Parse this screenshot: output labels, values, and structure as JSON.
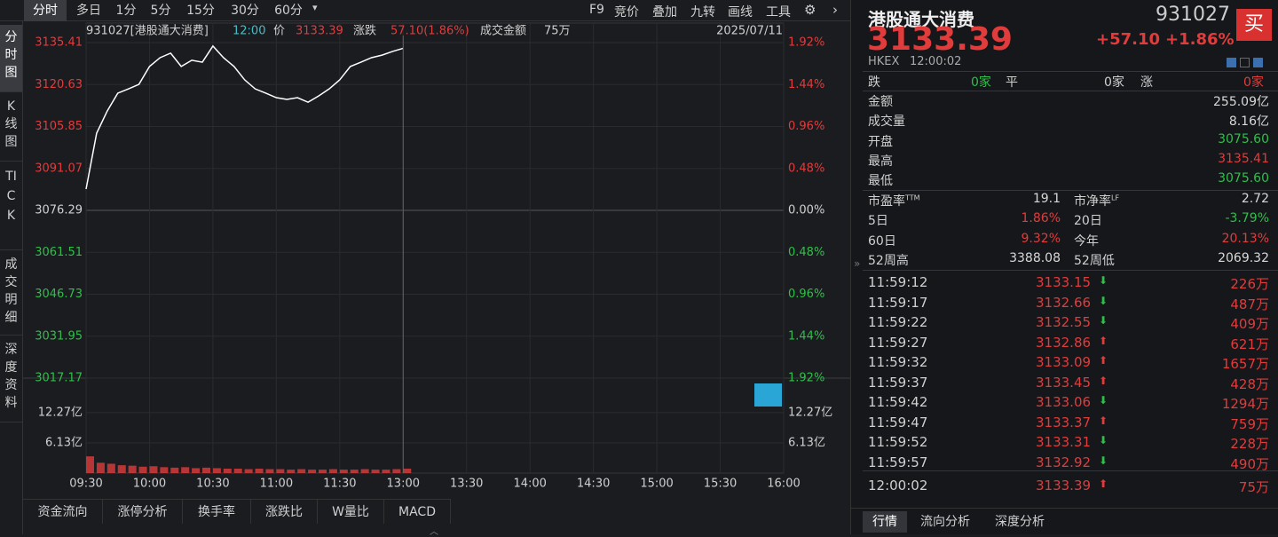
{
  "toolbar": {
    "tabs": [
      "分时",
      "多日",
      "1分",
      "5分",
      "15分",
      "30分",
      "60分"
    ],
    "tools": [
      "F9",
      "竞价",
      "叠加",
      "九转",
      "画线",
      "工具"
    ]
  },
  "sidebar": {
    "tabs": [
      "分时图",
      "K线图",
      "TICK",
      "成交明细",
      "深度资料"
    ]
  },
  "chart_info": {
    "name": "931027[港股通大消费]",
    "time": "12:00",
    "price_label": "价",
    "price": "3133.39",
    "change_label": "涨跌",
    "change": "57.10(1.86%)",
    "amount_label": "成交金额",
    "amount": "75万",
    "date": "2025/07/11"
  },
  "chart_data": {
    "type": "line",
    "x": [
      0,
      5,
      10,
      15,
      20,
      25,
      30,
      35,
      40,
      45,
      50,
      55,
      60,
      65,
      70,
      75,
      80,
      85,
      90,
      95,
      100,
      105,
      110,
      115,
      120,
      125,
      130,
      135,
      140,
      145,
      150
    ],
    "xlim": [
      0,
      330
    ],
    "xticks": [
      {
        "value": 0,
        "label": "09:30"
      },
      {
        "value": 30,
        "label": "10:00"
      },
      {
        "value": 60,
        "label": "10:30"
      },
      {
        "value": 90,
        "label": "11:00"
      },
      {
        "value": 120,
        "label": "11:30"
      },
      {
        "value": 150,
        "label": "13:00"
      },
      {
        "value": 180,
        "label": "13:30"
      },
      {
        "value": 210,
        "label": "14:00"
      },
      {
        "value": 240,
        "label": "14:30"
      },
      {
        "value": 270,
        "label": "15:00"
      },
      {
        "value": 300,
        "label": "15:30"
      },
      {
        "value": 330,
        "label": "16:00"
      }
    ],
    "series": [
      {
        "color": "#ffffff",
        "values": [
          3083.8,
          3103.5,
          3111.3,
          3117.6,
          3119.1,
          3120.7,
          3127.0,
          3130.1,
          3131.7,
          3127.0,
          3129.2,
          3128.5,
          3134.2,
          3130.1,
          3127.0,
          3122.3,
          3119.1,
          3117.6,
          3116.0,
          3115.4,
          3116.0,
          3114.4,
          3116.6,
          3119.1,
          3122.3,
          3127.0,
          3128.5,
          3130.1,
          3131.0,
          3132.3,
          3133.39
        ]
      }
    ],
    "ylim": [
      3017.17,
      3135.41
    ],
    "yticks": [
      3017.17,
      3031.95,
      3046.73,
      3061.51,
      3076.29,
      3091.07,
      3105.85,
      3120.63,
      3135.41
    ],
    "right_labels": [
      "1.92%",
      "1.44%",
      "0.96%",
      "0.48%",
      "0.00%",
      "0.48%",
      "0.96%",
      "1.44%",
      "1.92%"
    ],
    "volume": {
      "color": "#e03c3c",
      "values": [
        3.4,
        2.1,
        1.9,
        1.6,
        1.5,
        1.3,
        1.4,
        1.2,
        1.1,
        1.2,
        1.0,
        1.1,
        1.0,
        0.9,
        0.9,
        0.8,
        0.9,
        0.8,
        0.8,
        0.7,
        0.8,
        0.7,
        0.7,
        0.8,
        0.7,
        0.7,
        0.8,
        0.7,
        0.7,
        0.8,
        0.9
      ],
      "ylim": [
        0,
        19.28
      ],
      "yticks": [
        {
          "value": 6.13,
          "label": "6.13亿"
        },
        {
          "value": 12.27,
          "label": "12.27亿"
        }
      ]
    }
  },
  "bottom_tabs": [
    "资金流向",
    "涨停分析",
    "换手率",
    "涨跌比",
    "W量比",
    "MACD"
  ],
  "quote": {
    "title": "港股通大消费",
    "code": "931027",
    "buy": "买",
    "price": "3133.39",
    "change": "+57.10",
    "change_pct": "+1.86%",
    "market": "HKEX",
    "time": "12:00:02"
  },
  "breadth": {
    "down_label": "跌",
    "down": "0家",
    "flat_label": "平",
    "flat": "0家",
    "up_label": "涨",
    "up": "0家"
  },
  "stats": [
    {
      "label": "金额",
      "value": "255.09亿",
      "color": "#d8d8d8"
    },
    {
      "label": "成交量",
      "value": "8.16亿",
      "color": "#d8d8d8"
    },
    {
      "label": "开盘",
      "value": "3075.60",
      "color": "#2fbf4a"
    },
    {
      "label": "最高",
      "value": "3135.41",
      "color": "#e03c3c"
    },
    {
      "label": "最低",
      "value": "3075.60",
      "color": "#2fbf4a"
    }
  ],
  "ratios": [
    [
      {
        "label": "市盈率",
        "sup": "TTM",
        "value": "19.1",
        "color": "#d8d8d8"
      },
      {
        "label": "市净率",
        "sup": "LF",
        "value": "2.72",
        "color": "#d8d8d8"
      }
    ],
    [
      {
        "label": "5日",
        "value": "1.86%",
        "color": "#e03c3c"
      },
      {
        "label": "20日",
        "value": "-3.79%",
        "color": "#2fbf4a"
      }
    ],
    [
      {
        "label": "60日",
        "value": "9.32%",
        "color": "#e03c3c"
      },
      {
        "label": "今年",
        "value": "20.13%",
        "color": "#e03c3c"
      }
    ],
    [
      {
        "label": "52周高",
        "value": "3388.08",
        "color": "#d8d8d8"
      },
      {
        "label": "52周低",
        "value": "2069.32",
        "color": "#d8d8d8"
      }
    ]
  ],
  "trades": [
    {
      "time": "11:59:12",
      "price": "3133.15",
      "dir": "down",
      "volume": "226万"
    },
    {
      "time": "11:59:17",
      "price": "3132.66",
      "dir": "down",
      "volume": "487万"
    },
    {
      "time": "11:59:22",
      "price": "3132.55",
      "dir": "down",
      "volume": "409万"
    },
    {
      "time": "11:59:27",
      "price": "3132.86",
      "dir": "up",
      "volume": "621万"
    },
    {
      "time": "11:59:32",
      "price": "3133.09",
      "dir": "up",
      "volume": "1657万"
    },
    {
      "time": "11:59:37",
      "price": "3133.45",
      "dir": "up",
      "volume": "428万"
    },
    {
      "time": "11:59:42",
      "price": "3133.06",
      "dir": "down",
      "volume": "1294万"
    },
    {
      "time": "11:59:47",
      "price": "3133.37",
      "dir": "up",
      "volume": "759万"
    },
    {
      "time": "11:59:52",
      "price": "3133.31",
      "dir": "down",
      "volume": "228万"
    },
    {
      "time": "11:59:57",
      "price": "3132.92",
      "dir": "down",
      "volume": "490万"
    },
    {
      "time": "12:00:02",
      "price": "3133.39",
      "dir": "up",
      "volume": "75万"
    }
  ],
  "panel_tabs": [
    "行情",
    "流向分析",
    "深度分析"
  ]
}
